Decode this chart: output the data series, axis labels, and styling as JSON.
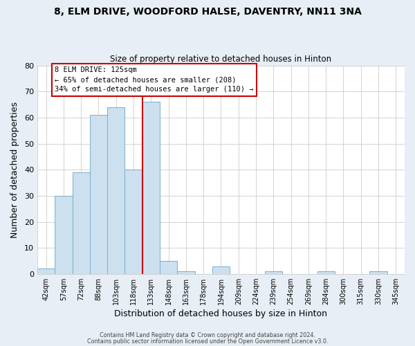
{
  "title_line1": "8, ELM DRIVE, WOODFORD HALSE, DAVENTRY, NN11 3NA",
  "title_line2": "Size of property relative to detached houses in Hinton",
  "xlabel": "Distribution of detached houses by size in Hinton",
  "ylabel": "Number of detached properties",
  "bar_labels": [
    "42sqm",
    "57sqm",
    "72sqm",
    "88sqm",
    "103sqm",
    "118sqm",
    "133sqm",
    "148sqm",
    "163sqm",
    "178sqm",
    "194sqm",
    "209sqm",
    "224sqm",
    "239sqm",
    "254sqm",
    "269sqm",
    "284sqm",
    "300sqm",
    "315sqm",
    "330sqm",
    "345sqm"
  ],
  "bar_values": [
    2,
    30,
    39,
    61,
    64,
    40,
    66,
    5,
    1,
    0,
    3,
    0,
    0,
    1,
    0,
    0,
    1,
    0,
    0,
    1,
    0
  ],
  "bar_color": "#cce0f0",
  "bar_edge_color": "#7aafc8",
  "vline_index": 5,
  "vline_color": "#cc0000",
  "ylim": [
    0,
    80
  ],
  "yticks": [
    0,
    10,
    20,
    30,
    40,
    50,
    60,
    70,
    80
  ],
  "annotation_title": "8 ELM DRIVE: 125sqm",
  "annotation_line1": "← 65% of detached houses are smaller (208)",
  "annotation_line2": "34% of semi-detached houses are larger (110) →",
  "annotation_box_color": "#ffffff",
  "annotation_box_edge": "#cc0000",
  "footer_line1": "Contains HM Land Registry data © Crown copyright and database right 2024.",
  "footer_line2": "Contains public sector information licensed under the Open Government Licence v3.0.",
  "background_color": "#e8eef5",
  "plot_background": "#ffffff",
  "grid_color": "#cccccc"
}
